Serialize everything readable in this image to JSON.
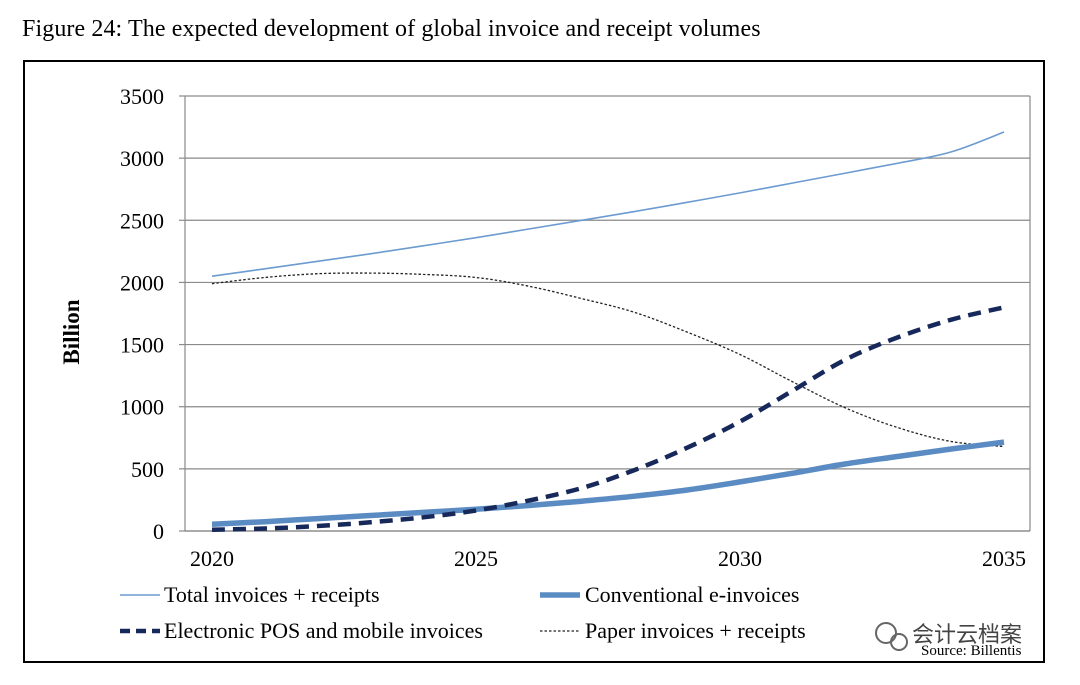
{
  "figure_title": "Figure 24: The expected development of global invoice and receipt volumes",
  "source": "Source: Billentis",
  "watermark": "会计云档案",
  "colors": {
    "total": "#6c9bd0",
    "conventional": "#5a8bc2",
    "electronic": "#17285a",
    "paper": "#222222",
    "grid": "#8a8a8a"
  },
  "chart_data": {
    "type": "line",
    "title": "",
    "xlabel": "",
    "ylabel": "Billion",
    "xlim": [
      2020,
      2035
    ],
    "ylim": [
      0,
      3500
    ],
    "x_ticks": [
      2020,
      2025,
      2030,
      2035
    ],
    "y_ticks": [
      0,
      500,
      1000,
      1500,
      2000,
      2500,
      3000,
      3500
    ],
    "grid": true,
    "legend_position": "bottom",
    "x": [
      2020,
      2021,
      2022,
      2023,
      2024,
      2025,
      2026,
      2027,
      2028,
      2029,
      2030,
      2031,
      2032,
      2033,
      2034,
      2035
    ],
    "series": [
      {
        "name": "Total invoices + receipts",
        "style": "thin-solid",
        "values": [
          2050,
          2110,
          2170,
          2230,
          2295,
          2360,
          2430,
          2500,
          2570,
          2645,
          2720,
          2800,
          2880,
          2960,
          3050,
          3210
        ]
      },
      {
        "name": "Conventional e-invoices",
        "style": "thick-solid",
        "values": [
          55,
          75,
          100,
          125,
          150,
          175,
          205,
          240,
          280,
          330,
          395,
          465,
          540,
          600,
          660,
          715
        ]
      },
      {
        "name": "Electronic POS and mobile invoices",
        "style": "thick-dashed",
        "values": [
          10,
          20,
          40,
          70,
          110,
          165,
          245,
          345,
          490,
          670,
          880,
          1130,
          1380,
          1560,
          1700,
          1800
        ]
      },
      {
        "name": "Paper invoices + receipts",
        "style": "thin-dotted",
        "values": [
          1990,
          2040,
          2070,
          2075,
          2065,
          2040,
          1970,
          1870,
          1760,
          1600,
          1420,
          1200,
          990,
          830,
          720,
          680
        ]
      }
    ]
  }
}
